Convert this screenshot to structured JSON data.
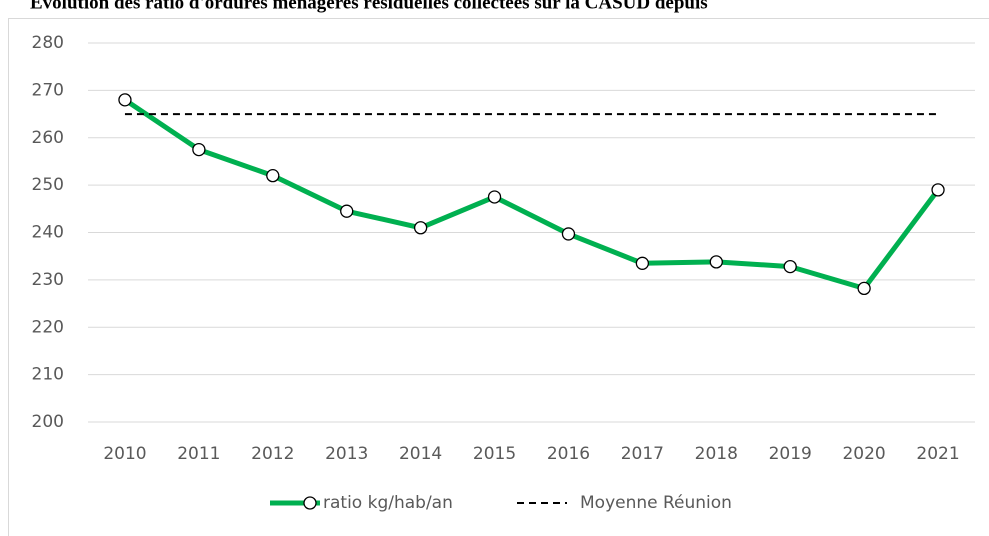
{
  "chart_data": {
    "type": "line",
    "title": "Évolution des ratio d'ordures ménagères résiduelles collectées sur la CASUD depuis",
    "categories": [
      "2010",
      "2011",
      "2012",
      "2013",
      "2014",
      "2015",
      "2016",
      "2017",
      "2018",
      "2019",
      "2020",
      "2021"
    ],
    "series": [
      {
        "name": "ratio kg/hab/an",
        "color": "#00b050",
        "style": "solid",
        "marker": "circle",
        "values": [
          268,
          257.5,
          252,
          244.5,
          241,
          247.5,
          239.7,
          233.5,
          233.8,
          232.8,
          228.2,
          249
        ]
      },
      {
        "name": "Moyenne Réunion",
        "color": "#000000",
        "style": "dashed",
        "values": [
          265,
          265,
          265,
          265,
          265,
          265,
          265,
          265,
          265,
          265,
          265,
          265
        ]
      }
    ],
    "ylim": [
      200,
      280
    ],
    "yticks": [
      200,
      210,
      220,
      230,
      240,
      250,
      260,
      270,
      280
    ],
    "grid": true,
    "legend": "bottom"
  }
}
